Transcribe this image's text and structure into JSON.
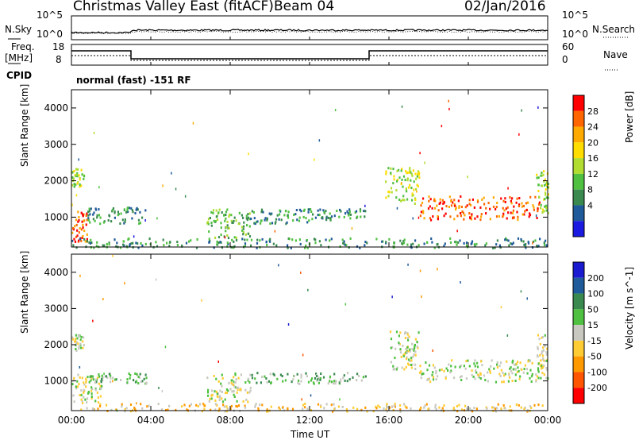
{
  "header": {
    "station": "Christmas Valley East (fitACF)",
    "beam": "Beam 04",
    "date": "02/Jan/2016"
  },
  "noise_panel": {
    "left_label": "N.Sky",
    "left_ticks": [
      "10^5",
      "10^0"
    ],
    "right_label": "N.Search",
    "right_ticks": [
      "10^5",
      "10^0"
    ]
  },
  "freq_panel": {
    "left_label_1": "Freq.",
    "left_label_2": "[MHz]",
    "left_ticks": [
      "18",
      "8"
    ],
    "right_label": "Nave",
    "right_ticks": [
      "60",
      "0"
    ],
    "cpid_label": "CPID",
    "cpid_value": "normal (fast) -151 RF"
  },
  "chart_data": [
    {
      "type": "heatmap",
      "name": "power",
      "ylabel": "Slant Range [km]",
      "yticks": [
        "4000",
        "3000",
        "2000",
        "1000"
      ],
      "ylim": [
        180,
        4500
      ],
      "xlim": [
        0,
        24
      ],
      "xtick_labels": [
        "00:00",
        "04:00",
        "08:00",
        "12:00",
        "16:00",
        "20:00",
        "00:00"
      ],
      "colorbar": {
        "label": "Power [dB]",
        "ticks": [
          "28",
          "24",
          "20",
          "16",
          "12",
          "8",
          "4"
        ],
        "colors": [
          "#ff0000",
          "#ff6600",
          "#ffaa00",
          "#ffdd00",
          "#b0dd30",
          "#4fc040",
          "#3a8a50",
          "#1f5a9a",
          "#1a1ae0"
        ]
      },
      "regions": [
        {
          "t0": 0.0,
          "t1": 0.6,
          "r0": 1850,
          "r1": 2350,
          "level": 4
        },
        {
          "t0": 0.0,
          "t1": 0.8,
          "r0": 350,
          "r1": 1200,
          "level": 1
        },
        {
          "t0": 0.8,
          "t1": 3.8,
          "r0": 850,
          "r1": 1300,
          "level": 6
        },
        {
          "t0": 6.8,
          "t1": 9.0,
          "r0": 450,
          "r1": 1250,
          "level": 5
        },
        {
          "t0": 9.0,
          "t1": 12.0,
          "r0": 850,
          "r1": 1250,
          "level": 6
        },
        {
          "t0": 12.0,
          "t1": 14.8,
          "r0": 950,
          "r1": 1250,
          "level": 6
        },
        {
          "t0": 15.8,
          "t1": 17.5,
          "r0": 1400,
          "r1": 2400,
          "level": 4
        },
        {
          "t0": 17.5,
          "t1": 23.6,
          "r0": 950,
          "r1": 1600,
          "level": 1
        },
        {
          "t0": 23.4,
          "t1": 24.0,
          "r0": 1100,
          "r1": 2300,
          "level": 4
        },
        {
          "t0": 0.0,
          "t1": 24.0,
          "r0": 180,
          "r1": 450,
          "level": 6
        }
      ]
    },
    {
      "type": "heatmap",
      "name": "velocity",
      "ylabel": "Slant Range [km]",
      "xlabel": "Time UT",
      "yticks": [
        "4000",
        "3000",
        "2000",
        "1000"
      ],
      "ylim": [
        180,
        4500
      ],
      "xlim": [
        0,
        24
      ],
      "xtick_labels": [
        "00:00",
        "04:00",
        "08:00",
        "12:00",
        "16:00",
        "20:00",
        "00:00"
      ],
      "colorbar": {
        "label": "Velocity [m s^-1]",
        "ticks": [
          "200",
          "100",
          "50",
          "15",
          "-15",
          "-50",
          "-100",
          "-200"
        ],
        "colors": [
          "#1a1ad0",
          "#1f5a9a",
          "#3a8a50",
          "#4fc040",
          "#c8c8c0",
          "#ffcc33",
          "#ff9900",
          "#ff5500",
          "#ff0000"
        ]
      },
      "regions": [
        {
          "t0": 0.0,
          "t1": 0.6,
          "r0": 1850,
          "r1": 2300,
          "level": 4
        },
        {
          "t0": 0.0,
          "t1": 1.5,
          "r0": 400,
          "r1": 1200,
          "level": 4
        },
        {
          "t0": 0.8,
          "t1": 3.8,
          "r0": 950,
          "r1": 1250,
          "level": 3
        },
        {
          "t0": 6.8,
          "t1": 9.0,
          "r0": 450,
          "r1": 1250,
          "level": 4
        },
        {
          "t0": 9.0,
          "t1": 14.8,
          "r0": 950,
          "r1": 1250,
          "level": 3
        },
        {
          "t0": 16.0,
          "t1": 17.5,
          "r0": 1300,
          "r1": 2400,
          "level": 4
        },
        {
          "t0": 17.5,
          "t1": 23.6,
          "r0": 1000,
          "r1": 1600,
          "level": 4
        },
        {
          "t0": 23.4,
          "t1": 24.0,
          "r0": 1100,
          "r1": 2300,
          "level": 4
        },
        {
          "t0": 0.0,
          "t1": 24.0,
          "r0": 180,
          "r1": 400,
          "level": 5
        }
      ]
    }
  ]
}
